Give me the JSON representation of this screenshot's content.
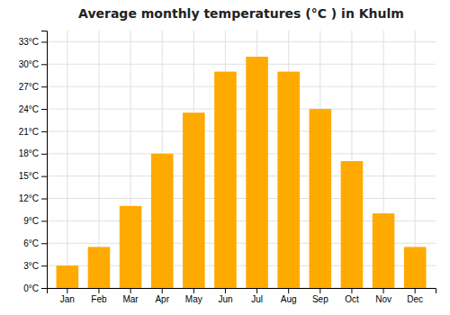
{
  "chart_data": {
    "type": "bar",
    "title": "Average monthly temperatures (°C ) in Khulm",
    "categories": [
      "Jan",
      "Feb",
      "Mar",
      "Apr",
      "May",
      "Jun",
      "Jul",
      "Aug",
      "Sep",
      "Oct",
      "Nov",
      "Dec"
    ],
    "values": [
      3,
      5.5,
      11,
      18,
      23.5,
      29,
      31,
      29,
      24,
      17,
      10,
      5.5
    ],
    "color": "#FFAA00",
    "ylim": [
      0,
      34.5
    ],
    "yticks": [
      {
        "value": 0,
        "label": "0°C"
      },
      {
        "value": 3,
        "label": "3°C"
      },
      {
        "value": 6,
        "label": "6°C"
      },
      {
        "value": 9,
        "label": "9°C"
      },
      {
        "value": 12,
        "label": "12°C"
      },
      {
        "value": 15,
        "label": "15°C"
      },
      {
        "value": 18,
        "label": "18°C"
      },
      {
        "value": 21,
        "label": "21°C"
      },
      {
        "value": 24,
        "label": "24°C"
      },
      {
        "value": 27,
        "label": "27°C"
      },
      {
        "value": 30,
        "label": "30°C"
      },
      {
        "value": 33,
        "label": "33°C"
      }
    ],
    "grid": true
  }
}
